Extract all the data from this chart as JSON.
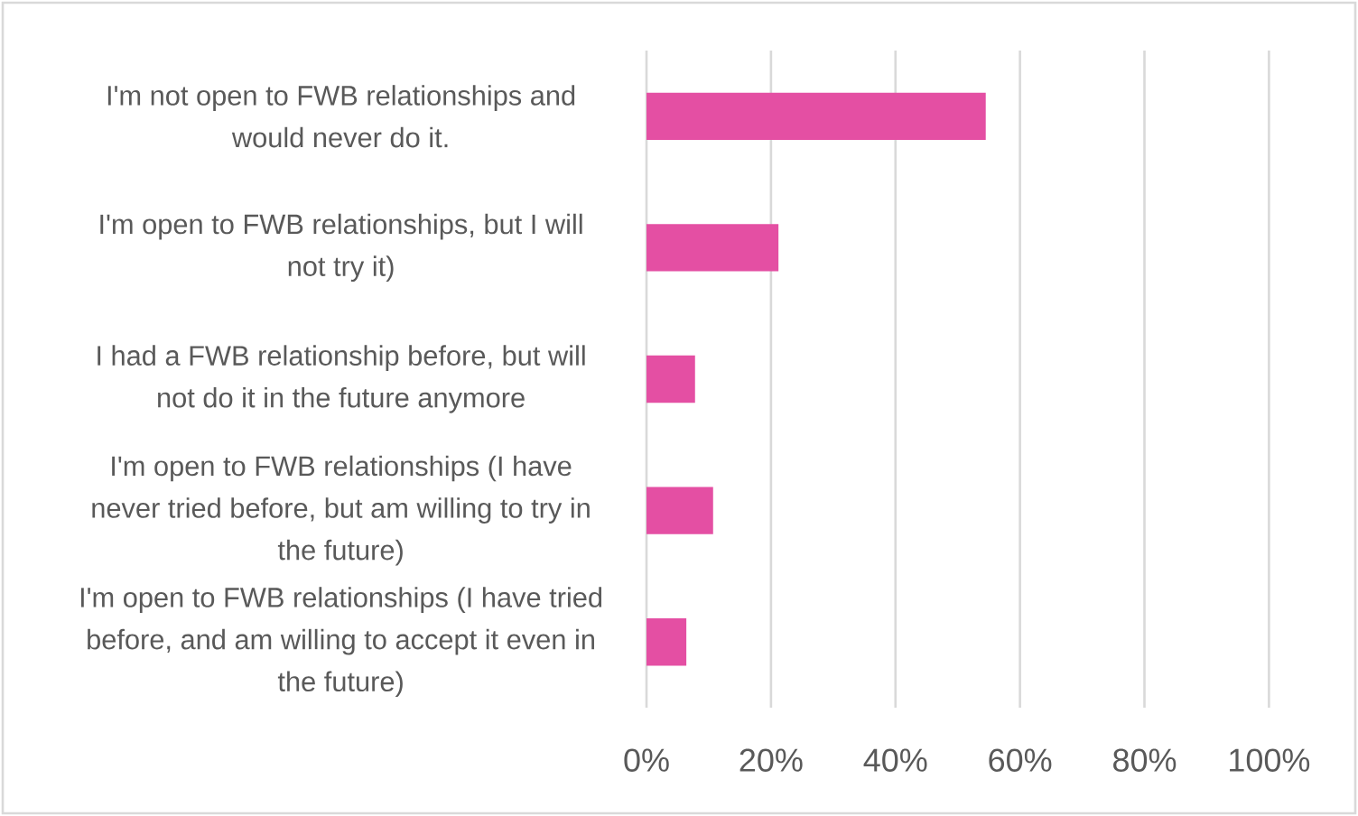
{
  "chart_data": {
    "type": "bar",
    "orientation": "horizontal",
    "categories": [
      "I'm not open to FWB relationships and would never do it.",
      "I'm open to FWB relationships, but I will not try it)",
      "I had a FWB relationship before, but will not do it in the future anymore",
      "I'm open to FWB relationships (I have never tried before, but am willing to try in the future)",
      "I'm open to FWB relationships (I have tried before, and am willing to accept it even in the future)"
    ],
    "values": [
      54.5,
      21.2,
      7.8,
      10.7,
      6.4
    ],
    "color": "#e44fa3",
    "xlim": [
      0,
      100
    ],
    "xticks": [
      {
        "value": 0,
        "label": "0%"
      },
      {
        "value": 20,
        "label": "20%"
      },
      {
        "value": 40,
        "label": "40%"
      },
      {
        "value": 60,
        "label": "60%"
      },
      {
        "value": 80,
        "label": "80%"
      },
      {
        "value": 100,
        "label": "100%"
      }
    ],
    "grid": "x"
  }
}
